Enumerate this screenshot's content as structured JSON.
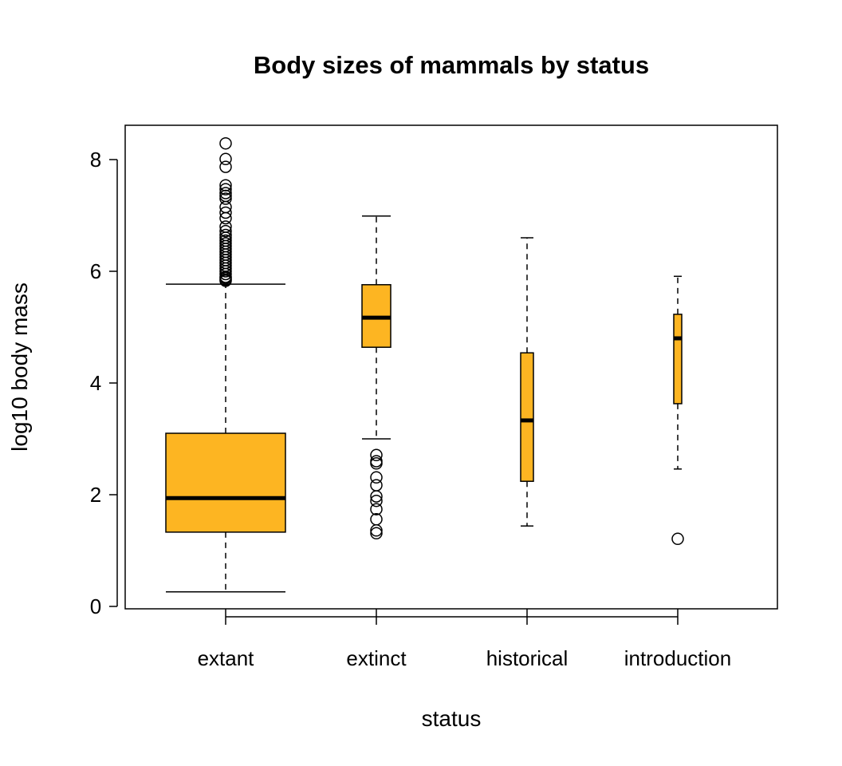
{
  "chart_data": {
    "type": "box",
    "title": "Body sizes of mammals by status",
    "xlabel": "status",
    "ylabel": "log10 body mass",
    "ylim": [
      0,
      8.6
    ],
    "yticks": [
      0,
      2,
      4,
      6,
      8
    ],
    "ytick_labels": [
      "0",
      "2",
      "4",
      "6",
      "8"
    ],
    "fill_color": "#FDB522",
    "grid": false,
    "categories": [
      "extant",
      "extinct",
      "historical",
      "introduction"
    ],
    "boxes": [
      {
        "name": "extant",
        "whisker_low": 0.26,
        "q1": 1.33,
        "median": 1.94,
        "q3": 3.1,
        "whisker_high": 5.77,
        "outliers": [
          8.29,
          8.01,
          7.87,
          7.54,
          7.47,
          7.4,
          7.35,
          7.3,
          7.15,
          7.05,
          6.95,
          6.8,
          6.72,
          6.65,
          6.6,
          6.55,
          6.5,
          6.45,
          6.4,
          6.35,
          6.3,
          6.25,
          6.2,
          6.15,
          6.1,
          6.05,
          6.0,
          5.95,
          5.9,
          5.88,
          5.85,
          5.83
        ]
      },
      {
        "name": "extinct",
        "whisker_low": 3.0,
        "q1": 4.64,
        "median": 5.17,
        "q3": 5.76,
        "whisker_high": 6.99,
        "outliers": [
          2.71,
          2.6,
          2.56,
          2.31,
          2.17,
          1.97,
          1.89,
          1.74,
          1.56,
          1.36,
          1.31
        ]
      },
      {
        "name": "historical",
        "whisker_low": 1.44,
        "q1": 2.24,
        "median": 3.33,
        "q3": 4.54,
        "whisker_high": 6.6,
        "outliers": []
      },
      {
        "name": "introduction",
        "whisker_low": 2.46,
        "q1": 3.63,
        "median": 4.8,
        "q3": 5.23,
        "whisker_high": 5.91,
        "outliers": [
          1.21
        ]
      }
    ]
  }
}
